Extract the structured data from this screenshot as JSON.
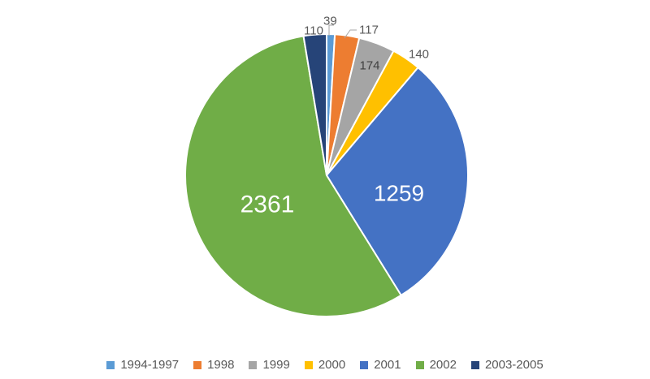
{
  "chart_data": {
    "type": "pie",
    "title": "",
    "categories": [
      "1994-1997",
      "1998",
      "1999",
      "2000",
      "2001",
      "2002",
      "2003-2005"
    ],
    "values": [
      39,
      117,
      174,
      140,
      1259,
      2361,
      110
    ],
    "colors": [
      "#5B9BD5",
      "#ED7D31",
      "#A5A5A5",
      "#FFC000",
      "#4472C4",
      "#70AD47",
      "#264478"
    ],
    "data_labels": [
      "39",
      "117",
      "174",
      "140",
      "1259",
      "2361",
      "110"
    ],
    "start_angle": "12 o'clock",
    "direction": "clockwise",
    "legend_position": "bottom"
  }
}
